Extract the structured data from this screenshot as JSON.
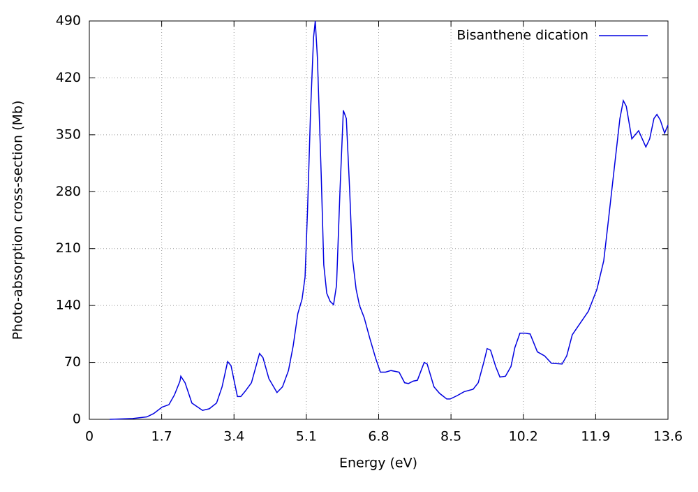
{
  "chart_data": {
    "type": "line",
    "xlabel": "Energy (eV)",
    "ylabel": "Photo-absorption cross-section (Mb)",
    "x": [
      0.48,
      1.02,
      1.35,
      1.51,
      1.71,
      1.87,
      2.0,
      2.13,
      2.15,
      2.25,
      2.41,
      2.66,
      2.82,
      2.99,
      3.12,
      3.25,
      3.33,
      3.48,
      3.56,
      3.67,
      3.81,
      4.0,
      4.08,
      4.22,
      4.41,
      4.54,
      4.68,
      4.79,
      4.9,
      5.0,
      5.07,
      5.13,
      5.2,
      5.27,
      5.31,
      5.36,
      5.45,
      5.51,
      5.58,
      5.66,
      5.74,
      5.81,
      5.89,
      5.97,
      6.04,
      6.12,
      6.18,
      6.27,
      6.35,
      6.46,
      6.59,
      6.73,
      6.84,
      6.96,
      7.09,
      7.28,
      7.41,
      7.5,
      7.61,
      7.71,
      7.87,
      7.94,
      8.1,
      8.23,
      8.4,
      8.48,
      8.64,
      8.81,
      9.02,
      9.14,
      9.27,
      9.35,
      9.43,
      9.55,
      9.65,
      9.78,
      9.91,
      10.0,
      10.12,
      10.23,
      10.36,
      10.53,
      10.7,
      10.86,
      11.11,
      11.22,
      11.35,
      11.52,
      11.73,
      11.93,
      12.09,
      12.2,
      12.34,
      12.47,
      12.55,
      12.62,
      12.75,
      12.83,
      12.91,
      13.08,
      13.17,
      13.27,
      13.34,
      13.42,
      13.52,
      13.6
    ],
    "series": [
      {
        "name": "Bisanthene dication",
        "color": "#0000e0",
        "values": [
          0,
          1,
          3,
          7,
          15,
          18,
          30,
          47,
          53,
          45,
          20,
          11,
          13,
          20,
          40,
          71,
          66,
          28,
          28,
          35,
          45,
          81,
          76,
          50,
          33,
          40,
          60,
          90,
          130,
          148,
          175,
          260,
          380,
          470,
          490,
          445,
          300,
          190,
          155,
          145,
          141,
          165,
          280,
          380,
          370,
          280,
          200,
          160,
          140,
          125,
          100,
          75,
          58,
          58,
          60,
          58,
          45,
          44,
          47,
          48,
          70,
          68,
          40,
          32,
          25,
          25,
          29,
          34,
          37,
          45,
          70,
          87,
          85,
          65,
          52,
          53,
          65,
          88,
          106,
          106,
          105,
          83,
          78,
          69,
          68,
          78,
          104,
          117,
          133,
          160,
          195,
          245,
          310,
          370,
          392,
          385,
          345,
          350,
          355,
          335,
          345,
          370,
          375,
          368,
          352,
          362
        ]
      }
    ],
    "xlim": [
      0,
      13.6
    ],
    "xticks": [
      0,
      1.7,
      3.4,
      5.1,
      6.8,
      8.5,
      10.2,
      11.9,
      13.6
    ],
    "ylim": [
      0,
      490
    ],
    "yticks": [
      0,
      70,
      140,
      210,
      280,
      350,
      420,
      490
    ],
    "grid": true,
    "legend": "upper right"
  }
}
